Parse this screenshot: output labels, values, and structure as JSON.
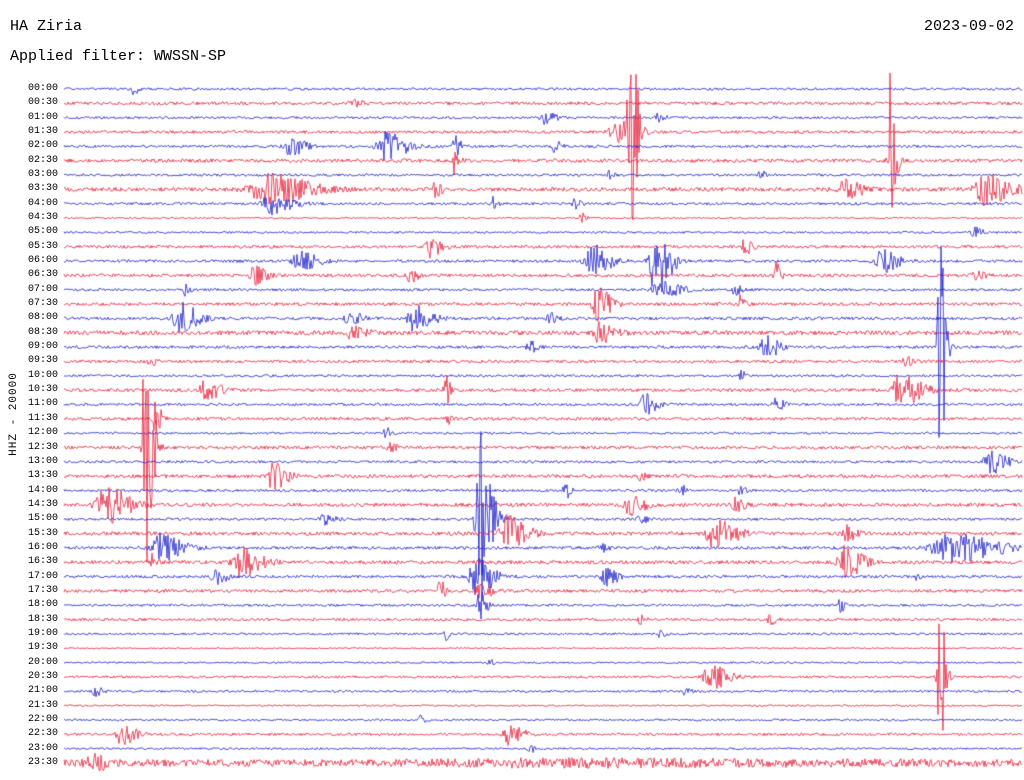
{
  "header": {
    "station": "HA Ziria",
    "filter": "Applied filter: WWSSN-SP",
    "date": "2023-09-02"
  },
  "axis": {
    "channel_label": "HHZ - 20000"
  },
  "chart_data": {
    "type": "line",
    "variant": "helicorder-seismogram",
    "title": "HA Ziria",
    "subtitle": "Applied filter: WWSSN-SP",
    "date": "2023-09-02",
    "ylabel": "HHZ - 20000",
    "minutes_per_row": 30,
    "time_start": "00:00",
    "time_end": "24:00",
    "grid": false,
    "legend": "none",
    "colors": {
      "red": "#e8213b",
      "blue": "#2022cc"
    },
    "rows": [
      {
        "label": "00:00",
        "color": "blue",
        "noise": 1.2,
        "events": [
          {
            "t": 0.072,
            "amp": 6,
            "w": 0.004
          }
        ]
      },
      {
        "label": "00:30",
        "color": "red",
        "noise": 1.6,
        "events": [
          {
            "t": 0.3,
            "amp": 3,
            "w": 0.01
          }
        ]
      },
      {
        "label": "01:00",
        "color": "blue",
        "noise": 1.2,
        "events": [
          {
            "t": 0.502,
            "amp": 6,
            "w": 0.008
          },
          {
            "t": 0.62,
            "amp": 4,
            "w": 0.005
          }
        ]
      },
      {
        "label": "01:30",
        "color": "red",
        "noise": 1.5,
        "events": [
          {
            "t": 0.577,
            "amp": 12,
            "w": 0.012
          },
          {
            "t": 0.591,
            "amp": 95,
            "w": 0.005
          }
        ]
      },
      {
        "label": "02:00",
        "color": "blue",
        "noise": 1.3,
        "events": [
          {
            "t": 0.236,
            "amp": 9,
            "w": 0.01
          },
          {
            "t": 0.335,
            "amp": 14,
            "w": 0.014
          },
          {
            "t": 0.408,
            "amp": 10,
            "w": 0.004
          },
          {
            "t": 0.512,
            "amp": 7,
            "w": 0.004
          }
        ]
      },
      {
        "label": "02:30",
        "color": "red",
        "noise": 1.8,
        "events": [
          {
            "t": 0.408,
            "amp": 18,
            "w": 0.003
          },
          {
            "t": 0.862,
            "amp": 90,
            "w": 0.004
          }
        ]
      },
      {
        "label": "03:00",
        "color": "blue",
        "noise": 1.2,
        "events": [
          {
            "t": 0.57,
            "amp": 5,
            "w": 0.004
          },
          {
            "t": 0.727,
            "amp": 4,
            "w": 0.004
          }
        ]
      },
      {
        "label": "03:30",
        "color": "red",
        "noise": 2.0,
        "events": [
          {
            "t": 0.21,
            "amp": 16,
            "w": 0.028
          },
          {
            "t": 0.387,
            "amp": 12,
            "w": 0.004
          },
          {
            "t": 0.815,
            "amp": 9,
            "w": 0.012
          },
          {
            "t": 0.961,
            "amp": 15,
            "w": 0.018
          }
        ]
      },
      {
        "label": "04:00",
        "color": "blue",
        "noise": 1.3,
        "events": [
          {
            "t": 0.215,
            "amp": 13,
            "w": 0.014
          },
          {
            "t": 0.448,
            "amp": 8,
            "w": 0.003
          },
          {
            "t": 0.533,
            "amp": 5,
            "w": 0.004
          }
        ]
      },
      {
        "label": "04:30",
        "color": "red",
        "noise": 0.8,
        "events": [
          {
            "t": 0.538,
            "amp": 6,
            "w": 0.004
          }
        ]
      },
      {
        "label": "05:00",
        "color": "blue",
        "noise": 1.0,
        "events": [
          {
            "t": 0.95,
            "amp": 5,
            "w": 0.006
          }
        ]
      },
      {
        "label": "05:30",
        "color": "red",
        "noise": 1.5,
        "events": [
          {
            "t": 0.382,
            "amp": 10,
            "w": 0.008
          },
          {
            "t": 0.71,
            "amp": 9,
            "w": 0.005
          }
        ]
      },
      {
        "label": "06:00",
        "color": "blue",
        "noise": 1.4,
        "events": [
          {
            "t": 0.246,
            "amp": 10,
            "w": 0.012
          },
          {
            "t": 0.551,
            "amp": 16,
            "w": 0.012
          },
          {
            "t": 0.617,
            "amp": 42,
            "w": 0.01
          },
          {
            "t": 0.852,
            "amp": 12,
            "w": 0.012
          }
        ]
      },
      {
        "label": "06:30",
        "color": "red",
        "noise": 1.6,
        "events": [
          {
            "t": 0.199,
            "amp": 10,
            "w": 0.008
          },
          {
            "t": 0.361,
            "amp": 8,
            "w": 0.005
          },
          {
            "t": 0.742,
            "amp": 13,
            "w": 0.004
          },
          {
            "t": 0.951,
            "amp": 5,
            "w": 0.006
          }
        ]
      },
      {
        "label": "07:00",
        "color": "blue",
        "noise": 1.3,
        "events": [
          {
            "t": 0.126,
            "amp": 6,
            "w": 0.003
          },
          {
            "t": 0.622,
            "amp": 8,
            "w": 0.014
          },
          {
            "t": 0.7,
            "amp": 6,
            "w": 0.004
          }
        ]
      },
      {
        "label": "07:30",
        "color": "red",
        "noise": 1.6,
        "events": [
          {
            "t": 0.556,
            "amp": 16,
            "w": 0.01
          },
          {
            "t": 0.706,
            "amp": 9,
            "w": 0.003
          }
        ]
      },
      {
        "label": "08:00",
        "color": "blue",
        "noise": 1.5,
        "events": [
          {
            "t": 0.121,
            "amp": 16,
            "w": 0.012
          },
          {
            "t": 0.298,
            "amp": 8,
            "w": 0.008
          },
          {
            "t": 0.366,
            "amp": 14,
            "w": 0.012
          },
          {
            "t": 0.507,
            "amp": 6,
            "w": 0.005
          }
        ]
      },
      {
        "label": "08:30",
        "color": "red",
        "noise": 2.2,
        "events": [
          {
            "t": 0.559,
            "amp": 10,
            "w": 0.01
          },
          {
            "t": 0.3,
            "amp": 6,
            "w": 0.01
          }
        ]
      },
      {
        "label": "09:00",
        "color": "blue",
        "noise": 1.4,
        "events": [
          {
            "t": 0.486,
            "amp": 6,
            "w": 0.005
          },
          {
            "t": 0.732,
            "amp": 11,
            "w": 0.01
          },
          {
            "t": 0.914,
            "amp": 120,
            "w": 0.004
          }
        ]
      },
      {
        "label": "09:30",
        "color": "red",
        "noise": 1.5,
        "events": [
          {
            "t": 0.09,
            "amp": 4,
            "w": 0.004
          },
          {
            "t": 0.878,
            "amp": 5,
            "w": 0.005
          }
        ]
      },
      {
        "label": "10:00",
        "color": "blue",
        "noise": 1.2,
        "events": [
          {
            "t": 0.706,
            "amp": 6,
            "w": 0.003
          }
        ]
      },
      {
        "label": "10:30",
        "color": "red",
        "noise": 1.7,
        "events": [
          {
            "t": 0.147,
            "amp": 10,
            "w": 0.01
          },
          {
            "t": 0.398,
            "amp": 20,
            "w": 0.003
          },
          {
            "t": 0.873,
            "amp": 16,
            "w": 0.014
          }
        ]
      },
      {
        "label": "11:00",
        "color": "blue",
        "noise": 1.3,
        "events": [
          {
            "t": 0.606,
            "amp": 10,
            "w": 0.008
          },
          {
            "t": 0.742,
            "amp": 7,
            "w": 0.006
          }
        ]
      },
      {
        "label": "11:30",
        "color": "red",
        "noise": 1.6,
        "events": [
          {
            "t": 0.095,
            "amp": 18,
            "w": 0.004
          },
          {
            "t": 0.398,
            "amp": 8,
            "w": 0.003
          }
        ]
      },
      {
        "label": "12:00",
        "color": "blue",
        "noise": 1.1,
        "events": [
          {
            "t": 0.335,
            "amp": 6,
            "w": 0.004
          }
        ]
      },
      {
        "label": "12:30",
        "color": "red",
        "noise": 1.6,
        "events": [
          {
            "t": 0.085,
            "amp": 160,
            "w": 0.005
          },
          {
            "t": 0.34,
            "amp": 4,
            "w": 0.005
          }
        ]
      },
      {
        "label": "13:00",
        "color": "blue",
        "noise": 1.3,
        "events": [
          {
            "t": 0.967,
            "amp": 13,
            "w": 0.012
          }
        ]
      },
      {
        "label": "13:30",
        "color": "red",
        "noise": 1.7,
        "events": [
          {
            "t": 0.217,
            "amp": 13,
            "w": 0.01
          },
          {
            "t": 0.601,
            "amp": 4,
            "w": 0.004
          }
        ]
      },
      {
        "label": "14:00",
        "color": "blue",
        "noise": 1.3,
        "events": [
          {
            "t": 0.523,
            "amp": 8,
            "w": 0.004
          },
          {
            "t": 0.643,
            "amp": 6,
            "w": 0.004
          },
          {
            "t": 0.706,
            "amp": 5,
            "w": 0.004
          }
        ]
      },
      {
        "label": "14:30",
        "color": "red",
        "noise": 1.8,
        "events": [
          {
            "t": 0.043,
            "amp": 18,
            "w": 0.016
          },
          {
            "t": 0.591,
            "amp": 10,
            "w": 0.01
          },
          {
            "t": 0.7,
            "amp": 7,
            "w": 0.006
          }
        ]
      },
      {
        "label": "15:00",
        "color": "blue",
        "noise": 1.3,
        "events": [
          {
            "t": 0.272,
            "amp": 6,
            "w": 0.008
          },
          {
            "t": 0.434,
            "amp": 95,
            "w": 0.008
          },
          {
            "t": 0.601,
            "amp": 5,
            "w": 0.005
          }
        ]
      },
      {
        "label": "15:30",
        "color": "red",
        "noise": 1.8,
        "events": [
          {
            "t": 0.46,
            "amp": 18,
            "w": 0.014
          },
          {
            "t": 0.679,
            "amp": 16,
            "w": 0.014
          },
          {
            "t": 0.815,
            "amp": 8,
            "w": 0.008
          }
        ]
      },
      {
        "label": "16:00",
        "color": "blue",
        "noise": 1.5,
        "events": [
          {
            "t": 0.1,
            "amp": 14,
            "w": 0.016
          },
          {
            "t": 0.56,
            "amp": 5,
            "w": 0.005
          },
          {
            "t": 0.925,
            "amp": 14,
            "w": 0.032
          }
        ]
      },
      {
        "label": "16:30",
        "color": "red",
        "noise": 1.8,
        "events": [
          {
            "t": 0.09,
            "amp": 8,
            "w": 0.004
          },
          {
            "t": 0.184,
            "amp": 14,
            "w": 0.014
          },
          {
            "t": 0.815,
            "amp": 16,
            "w": 0.012
          }
        ]
      },
      {
        "label": "17:00",
        "color": "blue",
        "noise": 1.4,
        "events": [
          {
            "t": 0.158,
            "amp": 8,
            "w": 0.008
          },
          {
            "t": 0.429,
            "amp": 20,
            "w": 0.012
          },
          {
            "t": 0.565,
            "amp": 10,
            "w": 0.008
          },
          {
            "t": 0.888,
            "amp": 6,
            "w": 0.003
          }
        ]
      },
      {
        "label": "17:30",
        "color": "red",
        "noise": 1.6,
        "events": [
          {
            "t": 0.392,
            "amp": 10,
            "w": 0.004
          },
          {
            "t": 0.434,
            "amp": 8,
            "w": 0.008
          }
        ]
      },
      {
        "label": "18:00",
        "color": "blue",
        "noise": 1.2,
        "events": [
          {
            "t": 0.434,
            "amp": 24,
            "w": 0.004
          },
          {
            "t": 0.81,
            "amp": 7,
            "w": 0.003
          }
        ]
      },
      {
        "label": "18:30",
        "color": "red",
        "noise": 1.4,
        "events": [
          {
            "t": 0.601,
            "amp": 4,
            "w": 0.004
          },
          {
            "t": 0.737,
            "amp": 6,
            "w": 0.004
          }
        ]
      },
      {
        "label": "19:00",
        "color": "blue",
        "noise": 1.1,
        "events": [
          {
            "t": 0.398,
            "amp": 6,
            "w": 0.003
          },
          {
            "t": 0.622,
            "amp": 3,
            "w": 0.004
          }
        ]
      },
      {
        "label": "19:30",
        "color": "red",
        "noise": 0.7,
        "events": []
      },
      {
        "label": "20:00",
        "color": "blue",
        "noise": 0.9,
        "events": [
          {
            "t": 0.444,
            "amp": 3,
            "w": 0.003
          }
        ]
      },
      {
        "label": "20:30",
        "color": "red",
        "noise": 1.2,
        "events": [
          {
            "t": 0.674,
            "amp": 13,
            "w": 0.012
          },
          {
            "t": 0.914,
            "amp": 70,
            "w": 0.004
          }
        ]
      },
      {
        "label": "21:00",
        "color": "blue",
        "noise": 1.1,
        "events": [
          {
            "t": 0.032,
            "amp": 5,
            "w": 0.005
          },
          {
            "t": 0.648,
            "amp": 4,
            "w": 0.004
          }
        ]
      },
      {
        "label": "21:30",
        "color": "red",
        "noise": 0.9,
        "events": []
      },
      {
        "label": "22:00",
        "color": "blue",
        "noise": 1.0,
        "events": [
          {
            "t": 0.372,
            "amp": 4,
            "w": 0.003
          }
        ]
      },
      {
        "label": "22:30",
        "color": "red",
        "noise": 1.3,
        "events": [
          {
            "t": 0.06,
            "amp": 10,
            "w": 0.01
          },
          {
            "t": 0.464,
            "amp": 10,
            "w": 0.01
          }
        ]
      },
      {
        "label": "23:00",
        "color": "blue",
        "noise": 1.0,
        "events": [
          {
            "t": 0.486,
            "amp": 4,
            "w": 0.004
          }
        ]
      },
      {
        "label": "23:30",
        "color": "red",
        "noise": 3.5,
        "events": [
          {
            "t": 0.027,
            "amp": 8,
            "w": 0.01
          },
          {
            "t": 0.5,
            "amp": 2,
            "w": 0.2
          }
        ]
      }
    ]
  }
}
